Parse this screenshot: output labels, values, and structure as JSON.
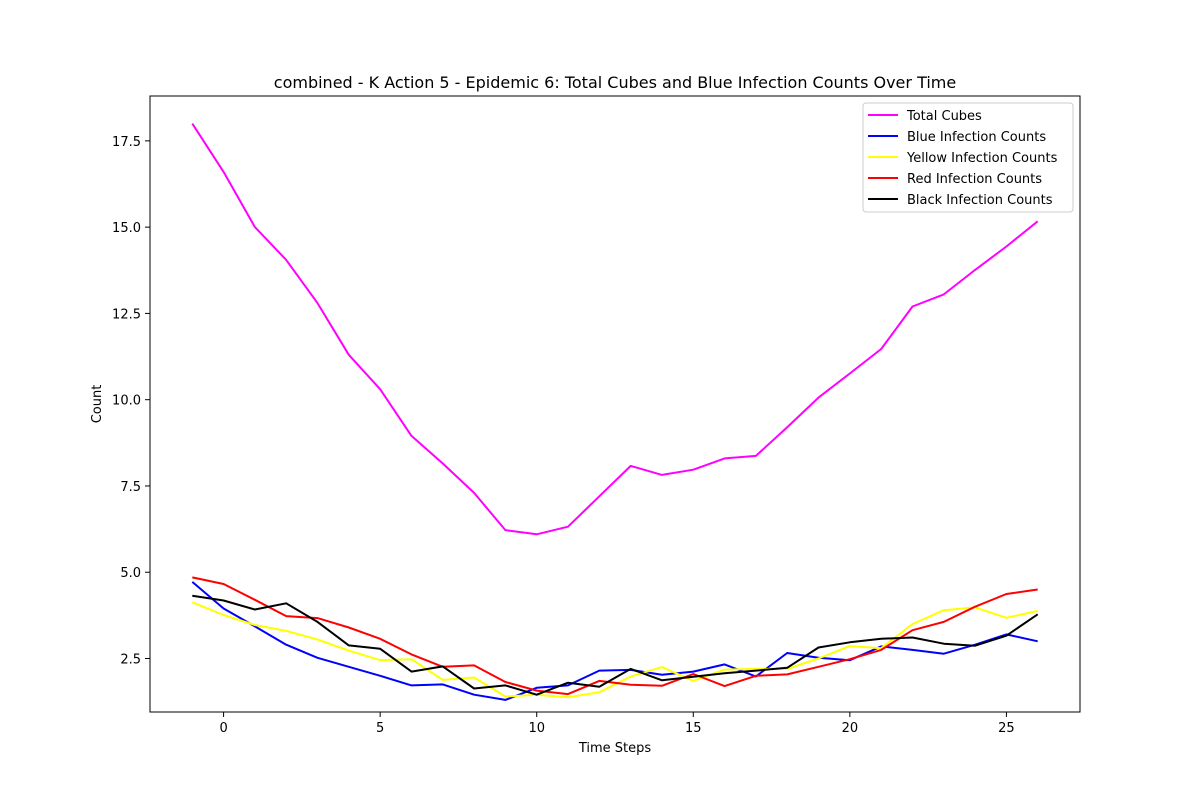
{
  "chart_data": {
    "type": "line",
    "title": "combined - K Action 5 - Epidemic 6: Total Cubes and Blue Infection Counts Over Time",
    "xlabel": "Time Steps",
    "ylabel": "Count",
    "xlim": [
      -2.35,
      27.35
    ],
    "ylim": [
      0.95,
      18.8
    ],
    "xticks": [
      0,
      5,
      10,
      15,
      20,
      25
    ],
    "yticks": [
      2.5,
      5.0,
      7.5,
      10.0,
      12.5,
      15.0,
      17.5
    ],
    "xtick_labels": [
      "0",
      "5",
      "10",
      "15",
      "20",
      "25"
    ],
    "ytick_labels": [
      "2.5",
      "5.0",
      "7.5",
      "10.0",
      "12.5",
      "15.0",
      "17.5"
    ],
    "grid": false,
    "legend_position": "upper right",
    "x": [
      -1,
      0,
      1,
      2,
      3,
      4,
      5,
      6,
      7,
      8,
      9,
      10,
      11,
      12,
      13,
      14,
      15,
      16,
      17,
      18,
      19,
      20,
      21,
      22,
      23,
      24,
      25,
      26
    ],
    "series": [
      {
        "name": "Total Cubes",
        "color": "#ff00ff",
        "values": [
          18.0,
          16.6,
          15.0,
          14.05,
          12.8,
          11.3,
          10.3,
          8.95,
          8.15,
          7.3,
          6.22,
          6.1,
          6.32,
          7.2,
          8.08,
          7.82,
          7.97,
          8.3,
          8.37,
          9.2,
          10.06,
          10.76,
          11.47,
          12.7,
          13.05,
          13.76,
          14.44,
          15.17
        ]
      },
      {
        "name": "Blue Infection Counts",
        "color": "#0000ff",
        "values": [
          4.72,
          3.95,
          3.43,
          2.9,
          2.52,
          2.26,
          2.0,
          1.72,
          1.75,
          1.45,
          1.3,
          1.65,
          1.72,
          2.15,
          2.17,
          2.03,
          2.12,
          2.33,
          1.98,
          2.66,
          2.52,
          2.45,
          2.85,
          2.75,
          2.64,
          2.9,
          3.2,
          3.0
        ]
      },
      {
        "name": "Yellow Infection Counts",
        "color": "#ffff00",
        "values": [
          4.13,
          3.76,
          3.47,
          3.3,
          3.05,
          2.73,
          2.45,
          2.48,
          1.88,
          1.95,
          1.4,
          1.45,
          1.38,
          1.52,
          1.98,
          2.25,
          1.85,
          2.18,
          2.2,
          2.2,
          2.5,
          2.86,
          2.8,
          3.5,
          3.9,
          3.98,
          3.68,
          3.88
        ]
      },
      {
        "name": "Red Infection Counts",
        "color": "#ff0000",
        "values": [
          4.85,
          4.66,
          4.2,
          3.73,
          3.67,
          3.4,
          3.07,
          2.62,
          2.26,
          2.3,
          1.82,
          1.57,
          1.47,
          1.85,
          1.74,
          1.71,
          2.05,
          1.7,
          2.0,
          2.04,
          2.26,
          2.48,
          2.75,
          3.32,
          3.56,
          4.0,
          4.37,
          4.5
        ]
      },
      {
        "name": "Black Infection Counts",
        "color": "#000000",
        "values": [
          4.32,
          4.18,
          3.92,
          4.1,
          3.56,
          2.88,
          2.78,
          2.12,
          2.27,
          1.63,
          1.72,
          1.45,
          1.8,
          1.68,
          2.2,
          1.87,
          1.97,
          2.07,
          2.15,
          2.23,
          2.82,
          2.97,
          3.07,
          3.11,
          2.93,
          2.87,
          3.16,
          3.78
        ]
      }
    ]
  }
}
